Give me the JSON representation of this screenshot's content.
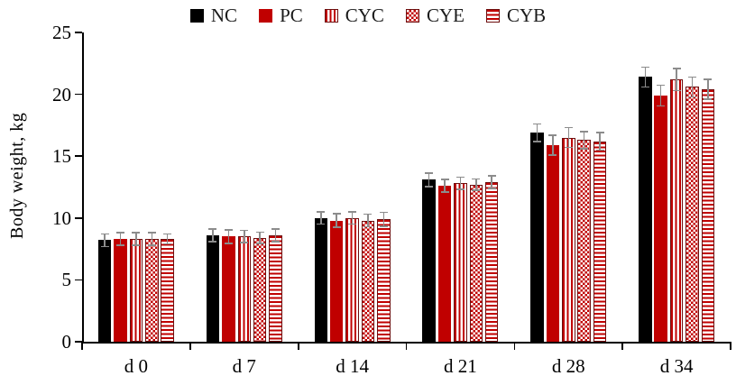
{
  "chart_data": {
    "type": "bar",
    "title": "",
    "xlabel": "",
    "ylabel": "Body weight, kg",
    "ylim": [
      0,
      25
    ],
    "yticks": [
      0,
      5,
      10,
      15,
      20,
      25
    ],
    "grid": false,
    "legend_position": "top-center",
    "categories": [
      "d 0",
      "d 7",
      "d 14",
      "d 21",
      "d 28",
      "d 34"
    ],
    "series": [
      {
        "name": "NC",
        "pattern": "solid-black",
        "values": [
          8.2,
          8.6,
          10.0,
          13.1,
          16.9,
          21.4
        ],
        "errors": [
          0.5,
          0.5,
          0.5,
          0.55,
          0.7,
          0.8
        ]
      },
      {
        "name": "PC",
        "pattern": "solid-red",
        "values": [
          8.3,
          8.5,
          9.8,
          12.6,
          15.9,
          19.9
        ],
        "errors": [
          0.5,
          0.55,
          0.55,
          0.5,
          0.8,
          0.85
        ]
      },
      {
        "name": "CYC",
        "pattern": "vertical-stripes",
        "values": [
          8.3,
          8.5,
          10.0,
          12.8,
          16.5,
          21.2
        ],
        "errors": [
          0.5,
          0.5,
          0.5,
          0.5,
          0.8,
          0.9
        ]
      },
      {
        "name": "CYE",
        "pattern": "checker",
        "values": [
          8.3,
          8.4,
          9.8,
          12.7,
          16.3,
          20.6
        ],
        "errors": [
          0.5,
          0.45,
          0.5,
          0.45,
          0.7,
          0.8
        ]
      },
      {
        "name": "CYB",
        "pattern": "horizontal-stripes",
        "values": [
          8.3,
          8.6,
          9.9,
          12.9,
          16.2,
          20.4
        ],
        "errors": [
          0.4,
          0.5,
          0.55,
          0.5,
          0.7,
          0.8
        ]
      }
    ],
    "colors": {
      "black": "#000000",
      "dark_red": "#c00000",
      "error_bar": "#8c8c8c",
      "axis": "#000000",
      "background": "#ffffff"
    }
  }
}
